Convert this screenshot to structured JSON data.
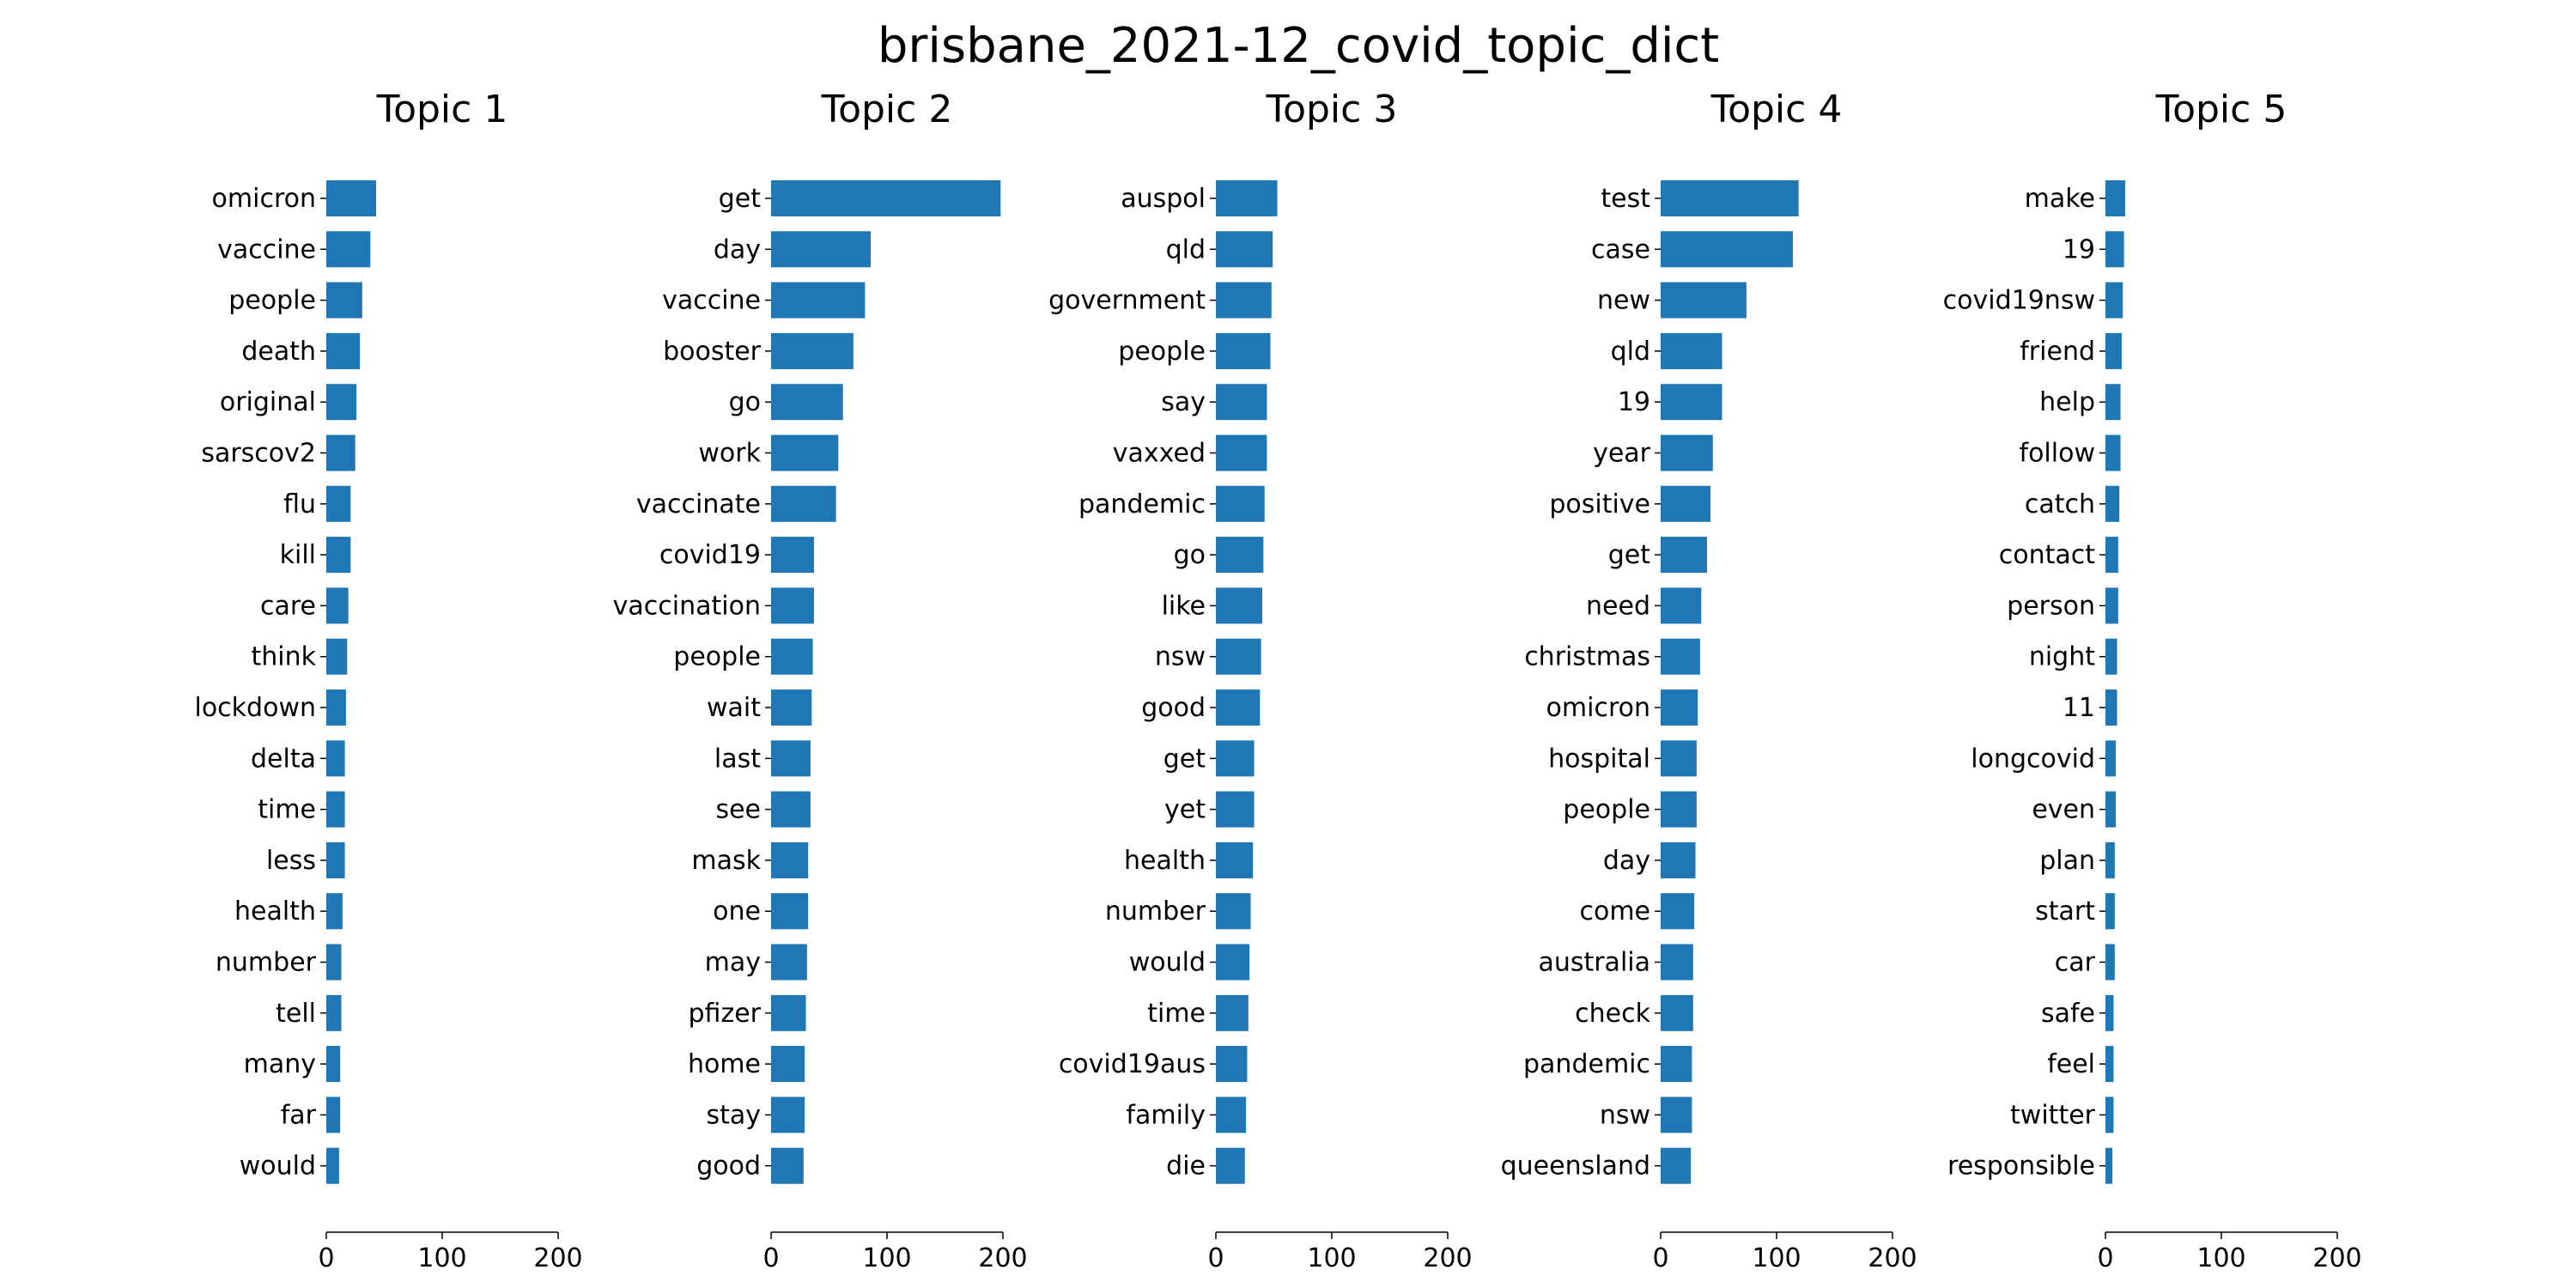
{
  "figure": {
    "title": "brisbane_2021-12_covid_topic_dict",
    "bar_color": "#1f77b4"
  },
  "chart_data": [
    {
      "type": "bar",
      "orientation": "horizontal",
      "title": "Topic 1",
      "xlim": [
        0,
        200
      ],
      "xticks": [
        0,
        100,
        200
      ],
      "categories": [
        "omicron",
        "vaccine",
        "people",
        "death",
        "original",
        "sarscov2",
        "flu",
        "kill",
        "care",
        "think",
        "lockdown",
        "delta",
        "time",
        "less",
        "health",
        "number",
        "tell",
        "many",
        "far",
        "would"
      ],
      "values": [
        43,
        38,
        31,
        29,
        26,
        25,
        21,
        21,
        19,
        18,
        17,
        16,
        16,
        16,
        14,
        13,
        13,
        12,
        12,
        11
      ]
    },
    {
      "type": "bar",
      "orientation": "horizontal",
      "title": "Topic 2",
      "xlim": [
        0,
        200
      ],
      "xticks": [
        0,
        100,
        200
      ],
      "categories": [
        "get",
        "day",
        "vaccine",
        "booster",
        "go",
        "work",
        "vaccinate",
        "covid19",
        "vaccination",
        "people",
        "wait",
        "last",
        "see",
        "mask",
        "one",
        "may",
        "pfizer",
        "home",
        "stay",
        "good"
      ],
      "values": [
        198,
        86,
        81,
        71,
        62,
        58,
        56,
        37,
        37,
        36,
        35,
        34,
        34,
        32,
        32,
        31,
        30,
        29,
        29,
        28
      ]
    },
    {
      "type": "bar",
      "orientation": "horizontal",
      "title": "Topic 3",
      "xlim": [
        0,
        200
      ],
      "xticks": [
        0,
        100,
        200
      ],
      "categories": [
        "auspol",
        "qld",
        "government",
        "people",
        "say",
        "vaxxed",
        "pandemic",
        "go",
        "like",
        "nsw",
        "good",
        "get",
        "yet",
        "health",
        "number",
        "would",
        "time",
        "covid19aus",
        "family",
        "die"
      ],
      "values": [
        53,
        49,
        48,
        47,
        44,
        44,
        42,
        41,
        40,
        39,
        38,
        33,
        33,
        32,
        30,
        29,
        28,
        27,
        26,
        25
      ]
    },
    {
      "type": "bar",
      "orientation": "horizontal",
      "title": "Topic 4",
      "xlim": [
        0,
        200
      ],
      "xticks": [
        0,
        100,
        200
      ],
      "categories": [
        "test",
        "case",
        "new",
        "qld",
        "19",
        "year",
        "positive",
        "get",
        "need",
        "christmas",
        "omicron",
        "hospital",
        "people",
        "day",
        "come",
        "australia",
        "check",
        "pandemic",
        "nsw",
        "queensland"
      ],
      "values": [
        119,
        114,
        74,
        53,
        53,
        45,
        43,
        40,
        35,
        34,
        32,
        31,
        31,
        30,
        29,
        28,
        28,
        27,
        27,
        26
      ]
    },
    {
      "type": "bar",
      "orientation": "horizontal",
      "title": "Topic 5",
      "xlim": [
        0,
        200
      ],
      "xticks": [
        0,
        100,
        200
      ],
      "categories": [
        "make",
        "19",
        "covid19nsw",
        "friend",
        "help",
        "follow",
        "catch",
        "contact",
        "person",
        "night",
        "11",
        "longcovid",
        "even",
        "plan",
        "start",
        "car",
        "safe",
        "feel",
        "twitter",
        "responsible"
      ],
      "values": [
        17,
        16,
        15,
        14,
        13,
        13,
        12,
        11,
        11,
        10,
        10,
        9,
        9,
        8,
        8,
        8,
        7,
        7,
        7,
        6
      ]
    }
  ]
}
